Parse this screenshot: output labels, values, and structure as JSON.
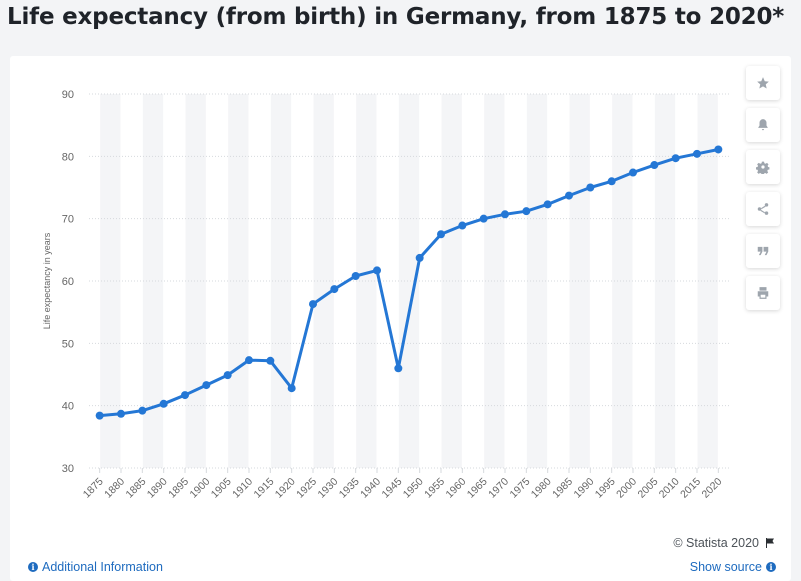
{
  "title": "Life expectancy (from birth) in Germany, from 1875 to 2020*",
  "copyright": "© Statista 2020",
  "footer": {
    "additional_info": "Additional Information",
    "show_source": "Show source"
  },
  "sidebar": {
    "buttons": [
      {
        "name": "favorite-button",
        "icon": "star-icon"
      },
      {
        "name": "notification-button",
        "icon": "bell-icon"
      },
      {
        "name": "settings-button",
        "icon": "gear-icon"
      },
      {
        "name": "share-button",
        "icon": "share-icon"
      },
      {
        "name": "cite-button",
        "icon": "quote-icon"
      },
      {
        "name": "print-button",
        "icon": "printer-icon"
      }
    ]
  },
  "colors": {
    "line": "#2477d5",
    "band": "#f4f5f7",
    "grid": "#d6d9dd",
    "tick_text": "#666666"
  },
  "chart_data": {
    "type": "line",
    "x": [
      "1875",
      "1880",
      "1885",
      "1890",
      "1895",
      "1900",
      "1905",
      "1910",
      "1915",
      "1920",
      "1925",
      "1930",
      "1935",
      "1940",
      "1945",
      "1950",
      "1955",
      "1960",
      "1965",
      "1970",
      "1975",
      "1980",
      "1985",
      "1990",
      "1995",
      "2000",
      "2005",
      "2010",
      "2015",
      "2020"
    ],
    "series": [
      {
        "values": [
          38.4,
          38.7,
          39.2,
          40.3,
          41.7,
          43.3,
          44.9,
          47.3,
          47.2,
          42.8,
          56.3,
          58.7,
          60.8,
          61.7,
          46.0,
          63.7,
          67.5,
          68.9,
          70.0,
          70.7,
          71.2,
          72.3,
          73.7,
          75.0,
          76.0,
          77.4,
          78.6,
          79.7,
          80.4,
          81.1
        ]
      }
    ],
    "ylabel": "Life expectancy in years",
    "xlabel": "",
    "ylim": [
      30,
      90
    ],
    "yticks": [
      30,
      40,
      50,
      60,
      70,
      80,
      90
    ],
    "grid": true,
    "legend": "none"
  }
}
